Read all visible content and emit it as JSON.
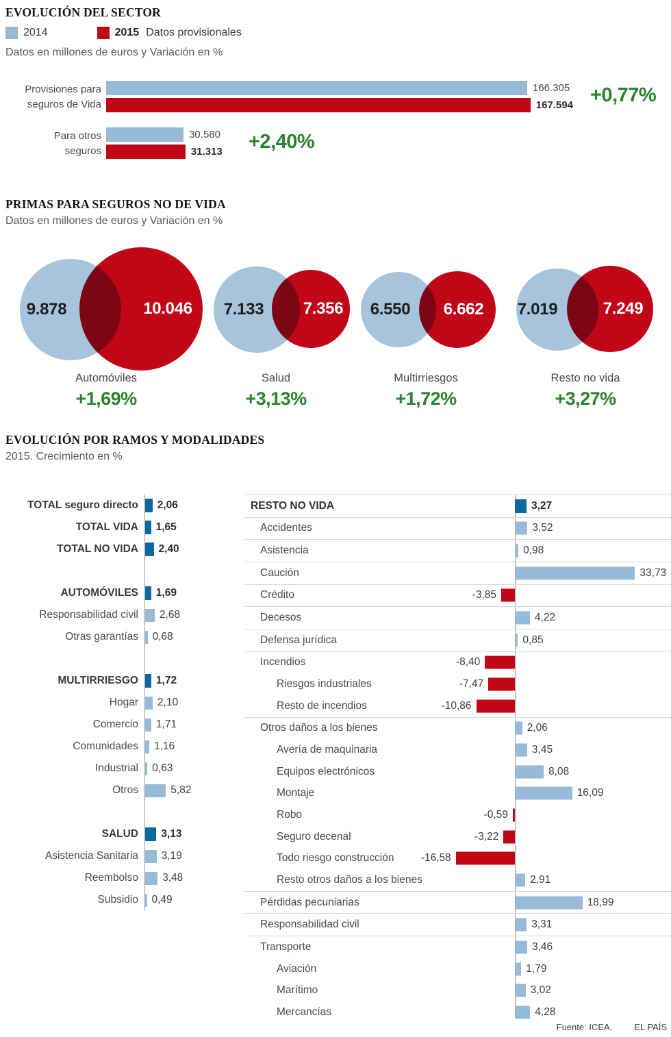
{
  "colors": {
    "blue_2014_bar": "#96bad7",
    "blue_2014_circle": "#a6c4dc",
    "red_2015": "#c10617",
    "blue_dark_total": "#0e699e",
    "green_positive": "#2b832b",
    "overlap_maroon": "#7f0a1f",
    "separator": "#d9d9d9",
    "axis": "#c9c9c9"
  },
  "section_evolucion": {
    "title": "EVOLUCIÓN DEL SECTOR",
    "legend": {
      "y2014": "2014",
      "y2015": "2015",
      "note": "Datos provisionales"
    },
    "subtitle": "Datos en millones de euros y Variación en %",
    "rows": [
      {
        "label_lines": [
          "Provisiones para",
          "seguros de Vida"
        ],
        "v2014": "166.305",
        "v2015": "167.594",
        "pct": "+0,77%"
      },
      {
        "label_lines": [
          "Para otros",
          "seguros"
        ],
        "v2014": "30.580",
        "v2015": "31.313",
        "pct": "+2,40%"
      }
    ]
  },
  "section_primas": {
    "title": "PRIMAS PARA SEGUROS NO DE VIDA",
    "subtitle": "Datos en millones de euros y Variación en %",
    "groups": [
      {
        "label": "Automóviles",
        "v2014": "9.878",
        "v2015": "10.046",
        "pct": "+1,69%"
      },
      {
        "label": "Salud",
        "v2014": "7.133",
        "v2015": "7.356",
        "pct": "+3,13%"
      },
      {
        "label": "Multirriesgos",
        "v2014": "6.550",
        "v2015": "6.662",
        "pct": "+1,72%"
      },
      {
        "label": "Resto no vida",
        "v2014": "7.019",
        "v2015": "7.249",
        "pct": "+3,27%"
      }
    ]
  },
  "section_ramos": {
    "title": "EVOLUCIÓN POR RAMOS Y MODALIDADES",
    "subtitle": "2015. Crecimiento en %",
    "left": [
      {
        "label": "TOTAL seguro directo",
        "value": "2,06"
      },
      {
        "label": "TOTAL VIDA",
        "value": "1,65"
      },
      {
        "label": "TOTAL NO VIDA",
        "value": "2,40"
      },
      {
        "label": "AUTOMÓVILES",
        "value": "1,69"
      },
      {
        "label": "Responsabilidad civil",
        "value": "2,68"
      },
      {
        "label": "Otras garantías",
        "value": "0,68"
      },
      {
        "label": "MULTIRRIESGO",
        "value": "1,72"
      },
      {
        "label": "Hogar",
        "value": "2,10"
      },
      {
        "label": "Comercio",
        "value": "1,71"
      },
      {
        "label": "Comunidades",
        "value": "1,16"
      },
      {
        "label": "Industrial",
        "value": "0,63"
      },
      {
        "label": "Otros",
        "value": "5,82"
      },
      {
        "label": "SALUD",
        "value": "3,13"
      },
      {
        "label": "Asistencia Sanitaria",
        "value": "3,19"
      },
      {
        "label": "Reembolso",
        "value": "3,48"
      },
      {
        "label": "Subsidio",
        "value": "0,49"
      }
    ],
    "right": [
      {
        "label": "RESTO NO VIDA",
        "value": "3,27"
      },
      {
        "label": "Accidentes",
        "value": "3,52"
      },
      {
        "label": "Asistencia",
        "value": "0,98"
      },
      {
        "label": "Caución",
        "value": "33,73"
      },
      {
        "label": "Crédito",
        "value": "-3,85"
      },
      {
        "label": "Decesos",
        "value": "4,22"
      },
      {
        "label": "Defensa jurídica",
        "value": "0,85"
      },
      {
        "label": "Incendios",
        "value": "-8,40"
      },
      {
        "label": "Riesgos industriales",
        "value": "-7,47"
      },
      {
        "label": "Resto de incendios",
        "value": "-10,86"
      },
      {
        "label": "Otros daños a los bienes",
        "value": "2,06"
      },
      {
        "label": "Avería de maquinaria",
        "value": "3,45"
      },
      {
        "label": "Equipos electrónicos",
        "value": "8,08"
      },
      {
        "label": "Montaje",
        "value": "16,09"
      },
      {
        "label": "Robo",
        "value": "-0,59"
      },
      {
        "label": "Seguro decenal",
        "value": "-3,22"
      },
      {
        "label": "Todo riesgo construcción",
        "value": "-16,58"
      },
      {
        "label": "Resto otros daños a los bienes",
        "value": "2,91"
      },
      {
        "label": "Pérdidas pecuniarias",
        "value": "18,99"
      },
      {
        "label": "Responsabilidad civil",
        "value": "3,31"
      },
      {
        "label": "Transporte",
        "value": "3,46"
      },
      {
        "label": "Aviación",
        "value": "1,79"
      },
      {
        "label": "Marítimo",
        "value": "3,02"
      },
      {
        "label": "Mercancías",
        "value": "4,28"
      }
    ]
  },
  "footer": {
    "source": "Fuente: ICEA.",
    "brand": "EL PAÍS"
  },
  "chart_data": [
    {
      "type": "bar",
      "orientation": "horizontal",
      "title": "EVOLUCIÓN DEL SECTOR",
      "subtitle": "Datos en millones de euros y Variación en %",
      "categories": [
        "Provisiones para seguros de Vida",
        "Para otros seguros"
      ],
      "series": [
        {
          "name": "2014",
          "values": [
            166305,
            30580
          ]
        },
        {
          "name": "2015",
          "values": [
            167594,
            31313
          ]
        }
      ],
      "variation_pct": [
        "+0,77%",
        "+2,40%"
      ],
      "legend_position": "top",
      "grid": false
    },
    {
      "type": "bar",
      "variant": "proportional-circles-venn",
      "title": "PRIMAS PARA SEGUROS NO DE VIDA",
      "subtitle": "Datos en millones de euros y Variación en %",
      "categories": [
        "Automóviles",
        "Salud",
        "Multirriesgos",
        "Resto no vida"
      ],
      "series": [
        {
          "name": "2014",
          "values": [
            9878,
            7133,
            6550,
            7019
          ]
        },
        {
          "name": "2015",
          "values": [
            10046,
            7356,
            6662,
            7249
          ]
        }
      ],
      "variation_pct": [
        "+1,69%",
        "+3,13%",
        "+1,72%",
        "+3,27%"
      ]
    },
    {
      "type": "bar",
      "orientation": "horizontal",
      "title": "EVOLUCIÓN POR RAMOS Y MODALIDADES",
      "subtitle": "2015. Crecimiento en %",
      "left_categories": [
        "TOTAL seguro directo",
        "TOTAL VIDA",
        "TOTAL NO VIDA",
        "AUTOMÓVILES",
        "Responsabilidad civil",
        "Otras garantías",
        "MULTIRRIESGO",
        "Hogar",
        "Comercio",
        "Comunidades",
        "Industrial",
        "Otros",
        "SALUD",
        "Asistencia Sanitaria",
        "Reembolso",
        "Subsidio"
      ],
      "left_values": [
        2.06,
        1.65,
        2.4,
        1.69,
        2.68,
        0.68,
        1.72,
        2.1,
        1.71,
        1.16,
        0.63,
        5.82,
        3.13,
        3.19,
        3.48,
        0.49
      ],
      "right_categories": [
        "RESTO NO VIDA",
        "Accidentes",
        "Asistencia",
        "Caución",
        "Crédito",
        "Decesos",
        "Defensa jurídica",
        "Incendios",
        "Riesgos industriales",
        "Resto de incendios",
        "Otros daños a los bienes",
        "Avería de maquinaria",
        "Equipos electrónicos",
        "Montaje",
        "Robo",
        "Seguro decenal",
        "Todo riesgo construcción",
        "Resto otros daños a los bienes",
        "Pérdidas pecuniarias",
        "Responsabilidad civil",
        "Transporte",
        "Aviación",
        "Marítimo",
        "Mercancías"
      ],
      "right_values": [
        3.27,
        3.52,
        0.98,
        33.73,
        -3.85,
        4.22,
        0.85,
        -8.4,
        -7.47,
        -10.86,
        2.06,
        3.45,
        8.08,
        16.09,
        -0.59,
        -3.22,
        -16.58,
        2.91,
        18.99,
        3.31,
        3.46,
        1.79,
        3.02,
        4.28
      ],
      "grid": false,
      "negative_color": "#c10617",
      "positive_color": "#96bad7",
      "total_color": "#0e699e"
    }
  ]
}
